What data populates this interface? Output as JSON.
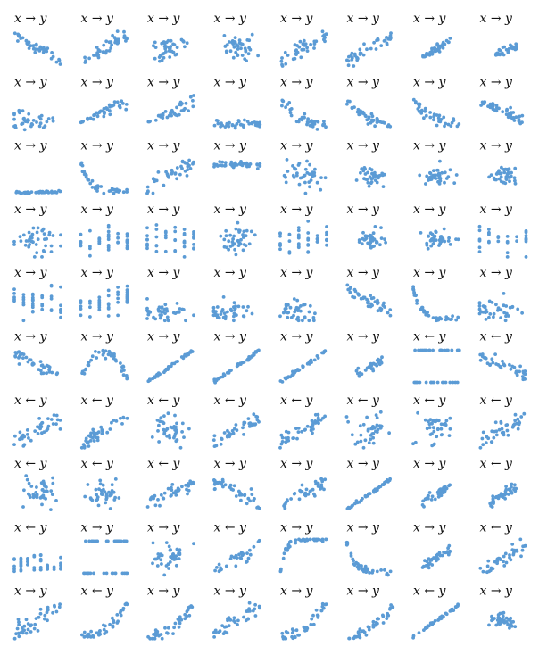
{
  "figure": {
    "rows": 10,
    "cols": 8,
    "point_color": "#5b9bd5"
  },
  "chart_data": [
    {
      "type": "scatter",
      "title": "x → y",
      "pattern": "neg",
      "n": 40,
      "seed": 1
    },
    {
      "type": "scatter",
      "title": "x → y",
      "pattern": "pos",
      "n": 40,
      "seed": 2
    },
    {
      "type": "scatter",
      "title": "x → y",
      "pattern": "cloud",
      "n": 40,
      "seed": 3
    },
    {
      "type": "scatter",
      "title": "x → y",
      "pattern": "cloud",
      "n": 40,
      "seed": 4
    },
    {
      "type": "scatter",
      "title": "x → y",
      "pattern": "pos",
      "n": 40,
      "seed": 5
    },
    {
      "type": "scatter",
      "title": "x → y",
      "pattern": "pos",
      "n": 40,
      "seed": 6
    },
    {
      "type": "scatter",
      "title": "x → y",
      "pattern": "pos_tight",
      "n": 40,
      "seed": 7
    },
    {
      "type": "scatter",
      "title": "x → y",
      "pattern": "pos_small",
      "n": 30,
      "seed": 8
    },
    {
      "type": "scatter",
      "title": "x → y",
      "pattern": "cluster_low",
      "n": 40,
      "seed": 9
    },
    {
      "type": "scatter",
      "title": "x → y",
      "pattern": "fan",
      "n": 40,
      "seed": 10
    },
    {
      "type": "scatter",
      "title": "x → y",
      "pattern": "fan",
      "n": 40,
      "seed": 11
    },
    {
      "type": "scatter",
      "title": "x → y",
      "pattern": "flat_low",
      "n": 40,
      "seed": 12
    },
    {
      "type": "scatter",
      "title": "x → y",
      "pattern": "neg_curve",
      "n": 40,
      "seed": 13
    },
    {
      "type": "scatter",
      "title": "x → y",
      "pattern": "neg_curve",
      "n": 40,
      "seed": 14
    },
    {
      "type": "scatter",
      "title": "x → y",
      "pattern": "neg_curve",
      "n": 40,
      "seed": 15
    },
    {
      "type": "scatter",
      "title": "x → y",
      "pattern": "neg",
      "n": 40,
      "seed": 16
    },
    {
      "type": "scatter",
      "title": "x → y",
      "pattern": "flat_bottom",
      "n": 40,
      "seed": 17
    },
    {
      "type": "scatter",
      "title": "x → y",
      "pattern": "decay",
      "n": 40,
      "seed": 18
    },
    {
      "type": "scatter",
      "title": "x → y",
      "pattern": "pos",
      "n": 40,
      "seed": 19
    },
    {
      "type": "scatter",
      "title": "x → y",
      "pattern": "flat_top",
      "n": 40,
      "seed": 20
    },
    {
      "type": "scatter",
      "title": "x → y",
      "pattern": "cloud",
      "n": 40,
      "seed": 21
    },
    {
      "type": "scatter",
      "title": "x → y",
      "pattern": "blob",
      "n": 40,
      "seed": 22
    },
    {
      "type": "scatter",
      "title": "x → y",
      "pattern": "blob",
      "n": 40,
      "seed": 23
    },
    {
      "type": "scatter",
      "title": "x → y",
      "pattern": "blob",
      "n": 40,
      "seed": 24
    },
    {
      "type": "scatter",
      "title": "x → y",
      "pattern": "cloud",
      "n": 40,
      "seed": 25
    },
    {
      "type": "scatter",
      "title": "x → y",
      "pattern": "discrete",
      "n": 40,
      "seed": 26
    },
    {
      "type": "scatter",
      "title": "x → y",
      "pattern": "discrete",
      "n": 40,
      "seed": 27
    },
    {
      "type": "scatter",
      "title": "x → y",
      "pattern": "cloud",
      "n": 40,
      "seed": 28
    },
    {
      "type": "scatter",
      "title": "x → y",
      "pattern": "discrete",
      "n": 40,
      "seed": 29
    },
    {
      "type": "scatter",
      "title": "x → y",
      "pattern": "blob",
      "n": 40,
      "seed": 30
    },
    {
      "type": "scatter",
      "title": "x → y",
      "pattern": "blob",
      "n": 40,
      "seed": 31
    },
    {
      "type": "scatter",
      "title": "x → y",
      "pattern": "discrete",
      "n": 30,
      "seed": 32
    },
    {
      "type": "scatter",
      "title": "x → y",
      "pattern": "discrete",
      "n": 40,
      "seed": 33
    },
    {
      "type": "scatter",
      "title": "x → y",
      "pattern": "discrete",
      "n": 40,
      "seed": 34
    },
    {
      "type": "scatter",
      "title": "x → y",
      "pattern": "cluster_low",
      "n": 40,
      "seed": 35
    },
    {
      "type": "scatter",
      "title": "x → y",
      "pattern": "cluster_low",
      "n": 40,
      "seed": 36
    },
    {
      "type": "scatter",
      "title": "x → y",
      "pattern": "cluster_low",
      "n": 40,
      "seed": 37
    },
    {
      "type": "scatter",
      "title": "x → y",
      "pattern": "neg",
      "n": 40,
      "seed": 38
    },
    {
      "type": "scatter",
      "title": "x → y",
      "pattern": "decay",
      "n": 40,
      "seed": 39
    },
    {
      "type": "scatter",
      "title": "x → y",
      "pattern": "cluster_low",
      "n": 40,
      "seed": 40
    },
    {
      "type": "scatter",
      "title": "x → y",
      "pattern": "neg",
      "n": 40,
      "seed": 41
    },
    {
      "type": "scatter",
      "title": "x → y",
      "pattern": "hump",
      "n": 40,
      "seed": 42
    },
    {
      "type": "scatter",
      "title": "x → y",
      "pattern": "line",
      "n": 40,
      "seed": 43
    },
    {
      "type": "scatter",
      "title": "x → y",
      "pattern": "line",
      "n": 40,
      "seed": 44
    },
    {
      "type": "scatter",
      "title": "x → y",
      "pattern": "line",
      "n": 40,
      "seed": 45
    },
    {
      "type": "scatter",
      "title": "x → y",
      "pattern": "pos_tight",
      "n": 30,
      "seed": 46
    },
    {
      "type": "scatter",
      "title": "x ← y",
      "pattern": "hlines",
      "n": 40,
      "seed": 47
    },
    {
      "type": "scatter",
      "title": "x ← y",
      "pattern": "neg",
      "n": 40,
      "seed": 48
    },
    {
      "type": "scatter",
      "title": "x ← y",
      "pattern": "pos",
      "n": 40,
      "seed": 49
    },
    {
      "type": "scatter",
      "title": "x ← y",
      "pattern": "pos",
      "n": 40,
      "seed": 50
    },
    {
      "type": "scatter",
      "title": "x ← y",
      "pattern": "cloud",
      "n": 40,
      "seed": 51
    },
    {
      "type": "scatter",
      "title": "x ← y",
      "pattern": "pos",
      "n": 40,
      "seed": 52
    },
    {
      "type": "scatter",
      "title": "x ← y",
      "pattern": "pos",
      "n": 40,
      "seed": 53
    },
    {
      "type": "scatter",
      "title": "x ← y",
      "pattern": "cloud",
      "n": 40,
      "seed": 54
    },
    {
      "type": "scatter",
      "title": "x ← y",
      "pattern": "cloud",
      "n": 40,
      "seed": 55
    },
    {
      "type": "scatter",
      "title": "x ← y",
      "pattern": "pos",
      "n": 40,
      "seed": 56
    },
    {
      "type": "scatter",
      "title": "x ← y",
      "pattern": "cloud",
      "n": 40,
      "seed": 57
    },
    {
      "type": "scatter",
      "title": "x ← y",
      "pattern": "cloud",
      "n": 40,
      "seed": 58
    },
    {
      "type": "scatter",
      "title": "x ← y",
      "pattern": "pos",
      "n": 40,
      "seed": 59
    },
    {
      "type": "scatter",
      "title": "x → y",
      "pattern": "neg",
      "n": 40,
      "seed": 60
    },
    {
      "type": "scatter",
      "title": "x → y",
      "pattern": "pos",
      "n": 40,
      "seed": 61
    },
    {
      "type": "scatter",
      "title": "x → y",
      "pattern": "line",
      "n": 40,
      "seed": 62
    },
    {
      "type": "scatter",
      "title": "x → y",
      "pattern": "pos_tight",
      "n": 40,
      "seed": 63
    },
    {
      "type": "scatter",
      "title": "x ← y",
      "pattern": "pos_tight",
      "n": 40,
      "seed": 64
    },
    {
      "type": "scatter",
      "title": "x ← y",
      "pattern": "grid",
      "n": 40,
      "seed": 65
    },
    {
      "type": "scatter",
      "title": "x → y",
      "pattern": "hlines",
      "n": 40,
      "seed": 66
    },
    {
      "type": "scatter",
      "title": "x → y",
      "pattern": "cloud",
      "n": 40,
      "seed": 67
    },
    {
      "type": "scatter",
      "title": "x ← y",
      "pattern": "pos",
      "n": 30,
      "seed": 68
    },
    {
      "type": "scatter",
      "title": "x → y",
      "pattern": "saturate",
      "n": 40,
      "seed": 69
    },
    {
      "type": "scatter",
      "title": "x → y",
      "pattern": "decay",
      "n": 40,
      "seed": 70
    },
    {
      "type": "scatter",
      "title": "x → y",
      "pattern": "pos_tight",
      "n": 40,
      "seed": 71
    },
    {
      "type": "scatter",
      "title": "x ← y",
      "pattern": "pos",
      "n": 40,
      "seed": 72
    },
    {
      "type": "scatter",
      "title": "x → y",
      "pattern": "pos",
      "n": 40,
      "seed": 73
    },
    {
      "type": "scatter",
      "title": "x ← y",
      "pattern": "convex",
      "n": 40,
      "seed": 74
    },
    {
      "type": "scatter",
      "title": "x → y",
      "pattern": "convex",
      "n": 40,
      "seed": 75
    },
    {
      "type": "scatter",
      "title": "x → y",
      "pattern": "pos",
      "n": 40,
      "seed": 76
    },
    {
      "type": "scatter",
      "title": "x → y",
      "pattern": "convex",
      "n": 40,
      "seed": 77
    },
    {
      "type": "scatter",
      "title": "x → y",
      "pattern": "convex",
      "n": 40,
      "seed": 78
    },
    {
      "type": "scatter",
      "title": "x ← y",
      "pattern": "line",
      "n": 40,
      "seed": 79
    },
    {
      "type": "scatter",
      "title": "x → y",
      "pattern": "blob",
      "n": 40,
      "seed": 80
    }
  ]
}
